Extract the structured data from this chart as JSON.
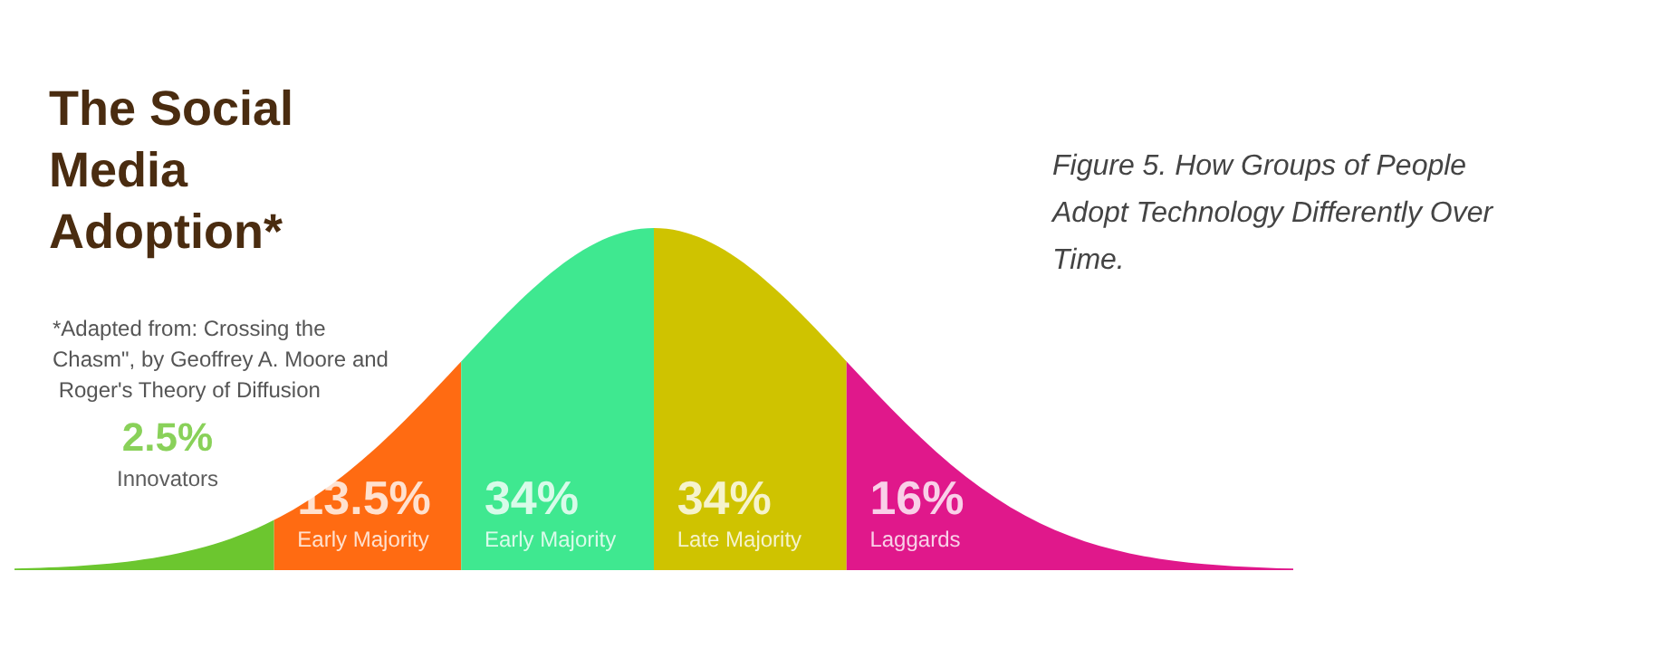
{
  "chart_data": {
    "type": "other",
    "title": "The Social Media Adoption*",
    "subtitle": "Figure 5. How Groups of People Adopt Technology Differently Over Time.",
    "annotations": [
      "*Adapted from: Crossing the Chasm\", by Geoffrey A. Moore and Roger's Theory of Diffusion"
    ],
    "categories": [
      "Innovators",
      "Early Majority",
      "Early Majority",
      "Late Majority",
      "Laggards"
    ],
    "values": [
      2.5,
      13.5,
      34,
      34,
      16
    ],
    "value_labels": [
      "2.5%",
      "13.5%",
      "34%",
      "34%",
      "16%"
    ],
    "colors": [
      "#6cc62f",
      "#ff6b12",
      "#3fe890",
      "#cfc300",
      "#e0188b"
    ]
  }
}
